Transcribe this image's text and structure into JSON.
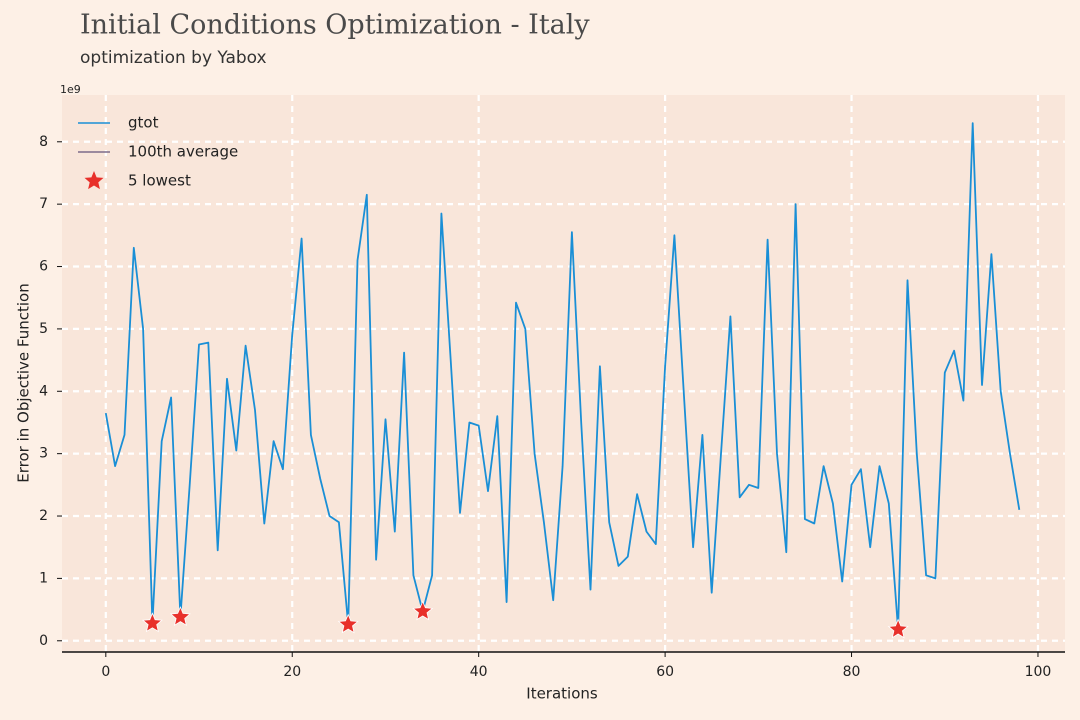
{
  "chart_data": {
    "type": "line",
    "title": "Initial Conditions Optimization - Italy",
    "subtitle": "optimization by Yabox",
    "xlabel": "Iterations",
    "ylabel": "Error in Objective Function",
    "y_offset_label": "1e9",
    "x": [
      0,
      1,
      2,
      3,
      4,
      5,
      6,
      7,
      8,
      9,
      10,
      11,
      12,
      13,
      14,
      15,
      16,
      17,
      18,
      19,
      20,
      21,
      22,
      23,
      24,
      25,
      26,
      27,
      28,
      29,
      30,
      31,
      32,
      33,
      34,
      35,
      36,
      37,
      38,
      39,
      40,
      41,
      42,
      43,
      44,
      45,
      46,
      47,
      48,
      49,
      50,
      51,
      52,
      53,
      54,
      55,
      56,
      57,
      58,
      59,
      60,
      61,
      62,
      63,
      64,
      65,
      66,
      67,
      68,
      69,
      70,
      71,
      72,
      73,
      74,
      75,
      76,
      77,
      78,
      79,
      80,
      81,
      82,
      83,
      84,
      85,
      86,
      87,
      88,
      89,
      90,
      91,
      92,
      93,
      94,
      95,
      96,
      97,
      98
    ],
    "series": [
      {
        "name": "gtot",
        "color": "#1a8fd6",
        "values": [
          3.65,
          2.8,
          3.3,
          6.3,
          5.0,
          0.28,
          3.2,
          3.9,
          0.38,
          2.5,
          4.75,
          4.78,
          1.45,
          4.2,
          3.05,
          4.73,
          3.7,
          1.88,
          3.2,
          2.75,
          4.9,
          6.45,
          3.3,
          2.6,
          2.0,
          1.9,
          0.26,
          6.1,
          7.15,
          1.3,
          3.55,
          1.75,
          4.62,
          1.05,
          0.47,
          1.05,
          6.85,
          4.5,
          2.05,
          3.5,
          3.45,
          2.4,
          3.6,
          0.62,
          5.42,
          5.0,
          3.0,
          1.9,
          0.65,
          2.8,
          6.55,
          3.5,
          0.82,
          4.4,
          1.9,
          1.2,
          1.35,
          2.35,
          1.75,
          1.55,
          4.4,
          6.5,
          4.0,
          1.5,
          3.3,
          0.77,
          3.0,
          5.2,
          2.3,
          2.5,
          2.45,
          6.43,
          3.0,
          1.42,
          7.0,
          1.95,
          1.88,
          2.8,
          2.2,
          0.95,
          2.5,
          2.75,
          1.5,
          2.8,
          2.2,
          0.18,
          5.78,
          3.0,
          1.05,
          1.0,
          4.3,
          4.65,
          3.85,
          8.3,
          4.1,
          6.2,
          4.0,
          3.0,
          2.1
        ]
      },
      {
        "name": "100th average",
        "color": "#7d6b8a"
      },
      {
        "name": "5 lowest",
        "color": "#e8302a",
        "type": "scatter",
        "x": [
          5,
          8,
          26,
          34,
          85
        ],
        "values": [
          0.28,
          0.38,
          0.26,
          0.47,
          0.18
        ]
      }
    ],
    "xlim": [
      -4.7,
      102.9
    ],
    "ylim": [
      -0.18,
      8.75
    ],
    "xticks": [
      0,
      20,
      40,
      60,
      80,
      100
    ],
    "yticks": [
      0,
      1,
      2,
      3,
      4,
      5,
      6,
      7,
      8
    ],
    "grid": true,
    "legend": "upper left"
  }
}
